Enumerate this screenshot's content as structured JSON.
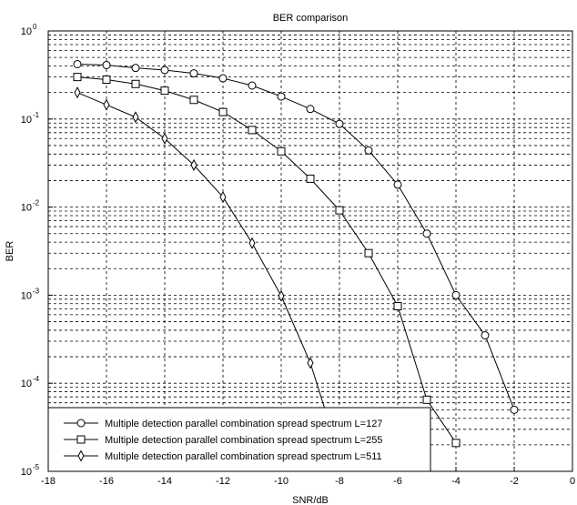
{
  "chart_data": {
    "type": "line",
    "title": "BER comparison",
    "xlabel": "SNR/dB",
    "ylabel": "BER",
    "xlim": [
      -18,
      0
    ],
    "ylim": [
      1e-05,
      1
    ],
    "yscale": "log",
    "grid": "on (dashed, major and minor)",
    "legend_position": "bottom-left",
    "x_ticks": [
      "-18",
      "-16",
      "-14",
      "-12",
      "-10",
      "-8",
      "-6",
      "-4",
      "-2",
      "0"
    ],
    "y_ticks": [
      {
        "base": "10",
        "exp": "0"
      },
      {
        "base": "10",
        "exp": "-1"
      },
      {
        "base": "10",
        "exp": "-2"
      },
      {
        "base": "10",
        "exp": "-3"
      },
      {
        "base": "10",
        "exp": "-4"
      },
      {
        "base": "10",
        "exp": "-5"
      }
    ],
    "series": [
      {
        "name": "Multiple detection parallel combination spread spectrum L=127",
        "marker": "circle",
        "x": [
          -17,
          -16,
          -15,
          -14,
          -13,
          -12,
          -11,
          -10,
          -9,
          -8,
          -7,
          -6,
          -5,
          -4,
          -3,
          -2
        ],
        "y": [
          0.42,
          0.41,
          0.38,
          0.36,
          0.33,
          0.29,
          0.24,
          0.18,
          0.13,
          0.088,
          0.044,
          0.018,
          0.005,
          0.001,
          0.00035,
          5e-05
        ]
      },
      {
        "name": "Multiple detection parallel combination spread spectrum L=255",
        "marker": "square",
        "x": [
          -17,
          -16,
          -15,
          -14,
          -13,
          -12,
          -11,
          -10,
          -9,
          -8,
          -7,
          -6,
          -5,
          -4
        ],
        "y": [
          0.3,
          0.28,
          0.25,
          0.21,
          0.165,
          0.12,
          0.075,
          0.043,
          0.021,
          0.0092,
          0.003,
          0.00075,
          6.5e-05,
          2.1e-05
        ]
      },
      {
        "name": "Multiple detection parallel combination spread spectrum L=511",
        "marker": "diamond",
        "x": [
          -17,
          -16,
          -15,
          -14,
          -13,
          -12,
          -11,
          -10,
          -9,
          -8.4
        ],
        "y": [
          0.2,
          0.145,
          0.105,
          0.06,
          0.03,
          0.013,
          0.0039,
          0.00098,
          0.00017,
          4e-05
        ]
      }
    ]
  }
}
